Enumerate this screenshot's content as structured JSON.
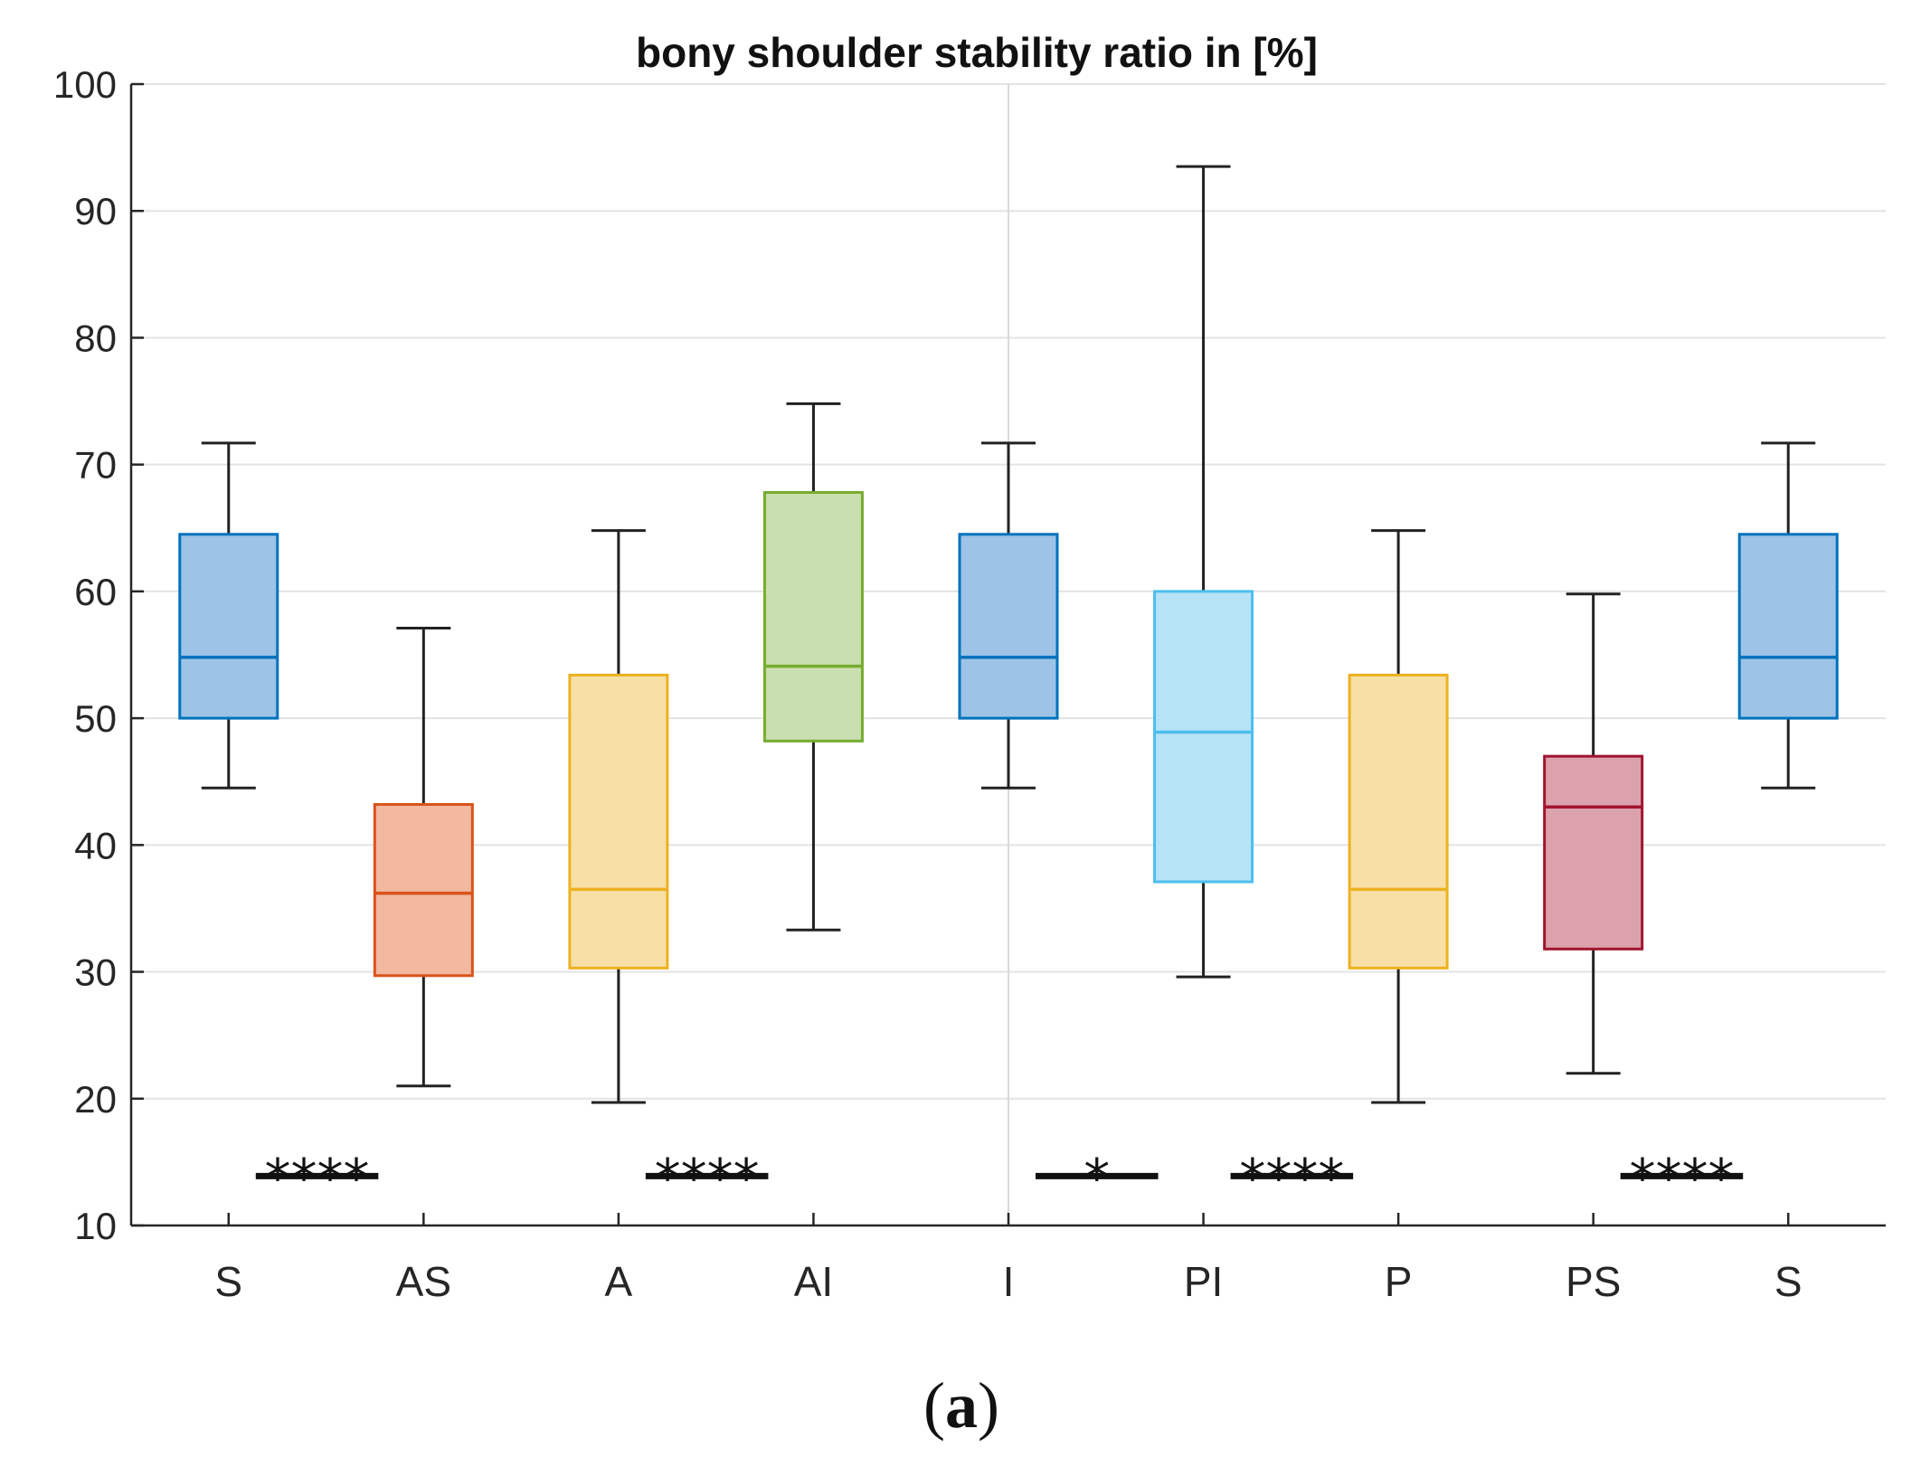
{
  "chart_data": {
    "type": "box",
    "title": "bony shoulder stability ratio in [%]",
    "xlabel": "",
    "ylabel": "",
    "ylim": [
      10,
      100
    ],
    "yticks": [
      10,
      20,
      30,
      40,
      50,
      60,
      70,
      80,
      90,
      100
    ],
    "grid": true,
    "categories": [
      "S",
      "AS",
      "A",
      "AI",
      "I",
      "PI",
      "P",
      "PS",
      "S"
    ],
    "boxes": [
      {
        "label": "S",
        "whisker_low": 44.5,
        "q1": 50.0,
        "median": 54.8,
        "q3": 64.5,
        "whisker_high": 71.7,
        "color": "#0072BD",
        "fill": "#9DC3E6"
      },
      {
        "label": "AS",
        "whisker_low": 21.0,
        "q1": 29.7,
        "median": 36.2,
        "q3": 43.2,
        "whisker_high": 57.1,
        "color": "#D95319",
        "fill": "#F2B8A0"
      },
      {
        "label": "A",
        "whisker_low": 19.7,
        "q1": 30.3,
        "median": 36.5,
        "q3": 53.4,
        "whisker_high": 64.8,
        "color": "#EDB120",
        "fill": "#F7DFA6"
      },
      {
        "label": "AI",
        "whisker_low": 33.3,
        "q1": 48.2,
        "median": 54.1,
        "q3": 67.8,
        "whisker_high": 74.8,
        "color": "#77AC30",
        "fill": "#CADFB0"
      },
      {
        "label": "I",
        "whisker_low": 44.5,
        "q1": 50.0,
        "median": 54.8,
        "q3": 64.5,
        "whisker_high": 71.7,
        "color": "#0072BD",
        "fill": "#9DC3E6"
      },
      {
        "label": "PI",
        "whisker_low": 29.6,
        "q1": 37.1,
        "median": 48.9,
        "q3": 60.0,
        "whisker_high": 93.5,
        "color": "#4DBEEE",
        "fill": "#B7E3F7"
      },
      {
        "label": "P",
        "whisker_low": 19.7,
        "q1": 30.3,
        "median": 36.5,
        "q3": 53.4,
        "whisker_high": 64.8,
        "color": "#EDB120",
        "fill": "#F7DFA6"
      },
      {
        "label": "PS",
        "whisker_low": 22.0,
        "q1": 31.8,
        "median": 43.0,
        "q3": 47.0,
        "whisker_high": 59.8,
        "color": "#A2142F",
        "fill": "#DBA2AE"
      },
      {
        "label": "S",
        "whisker_low": 44.5,
        "q1": 50.0,
        "median": 54.8,
        "q3": 64.5,
        "whisker_high": 71.7,
        "color": "#0072BD",
        "fill": "#9DC3E6"
      }
    ],
    "significance": [
      {
        "from": "S",
        "to": "AS",
        "marker": "****"
      },
      {
        "from": "A",
        "to": "AI",
        "marker": "****"
      },
      {
        "from": "I",
        "to": "PI",
        "marker": "*"
      },
      {
        "from": "PI",
        "to": "P",
        "marker": "****"
      },
      {
        "from": "PS",
        "to": "S",
        "marker": "****"
      }
    ],
    "vertical_reference_line_at": "I"
  },
  "caption": {
    "open": "(",
    "letter": "a",
    "close": ")"
  }
}
